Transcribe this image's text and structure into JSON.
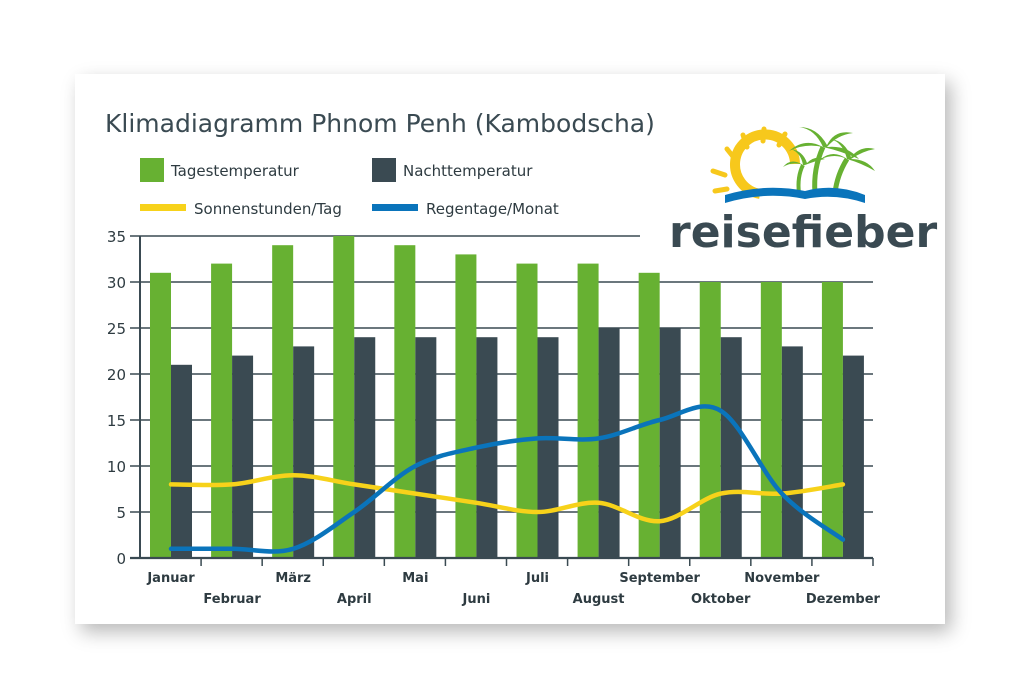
{
  "chart_data": {
    "type": "bar",
    "title": "Klimadiagramm Phnom Penh (Kambodscha)",
    "categories": [
      "Januar",
      "Februar",
      "März",
      "April",
      "Mai",
      "Juni",
      "Juli",
      "August",
      "September",
      "Oktober",
      "November",
      "Dezember"
    ],
    "ylim": [
      0,
      35
    ],
    "yticks": [
      0,
      5,
      10,
      15,
      20,
      25,
      30,
      35
    ],
    "grid": true,
    "legend_position": "top-left",
    "series": [
      {
        "name": "Tagestemperatur",
        "kind": "bar",
        "color": "#67b132",
        "values": [
          31,
          32,
          34,
          35,
          34,
          33,
          32,
          32,
          31,
          30,
          30,
          30
        ]
      },
      {
        "name": "Nachttemperatur",
        "kind": "bar",
        "color": "#3a4a52",
        "values": [
          21,
          22,
          23,
          24,
          24,
          24,
          24,
          25,
          25,
          24,
          23,
          22
        ]
      },
      {
        "name": "Sonnenstunden/Tag",
        "kind": "line",
        "color": "#f7d21a",
        "values": [
          8,
          8,
          9,
          8,
          7,
          6,
          5,
          6,
          4,
          7,
          7,
          8
        ]
      },
      {
        "name": "Regentage/Monat",
        "kind": "line",
        "color": "#0a74bb",
        "values": [
          1,
          1,
          1,
          5,
          10,
          12,
          13,
          13,
          15,
          16,
          7,
          2
        ]
      }
    ]
  },
  "logo": {
    "text": "reisefieber",
    "colors": {
      "sun": "#f7c81c",
      "palm": "#67b132",
      "wave": "#0a74bb",
      "text": "#3a4a52"
    }
  }
}
